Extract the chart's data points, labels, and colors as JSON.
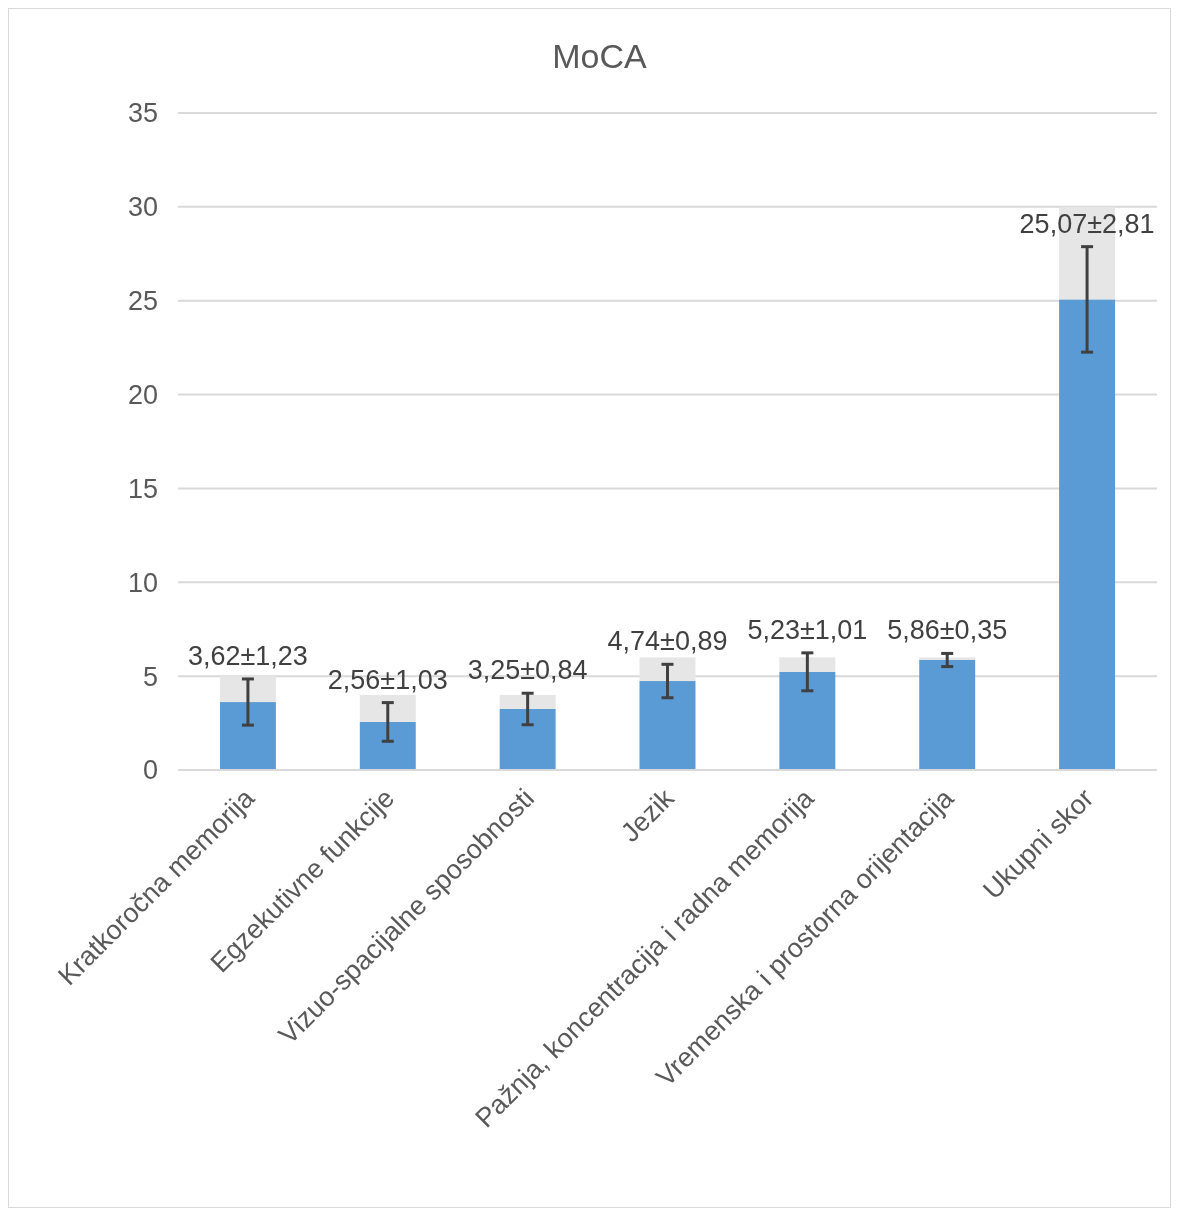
{
  "chart_data": {
    "type": "bar",
    "title": "MoCA",
    "categories": [
      "Kratkoročna memorija",
      "Egzekutivne funkcije",
      "Vizuo-spacijalne sposobnosti",
      "Jezik",
      "Pažnja, koncentracija i radna memorija",
      "Vremenska i prostorna orijentacija",
      "Ukupni skor"
    ],
    "series": [
      {
        "color": "#5b9bd5",
        "values": [
          3.62,
          2.56,
          3.25,
          4.74,
          5.23,
          5.86,
          25.07
        ],
        "errors": [
          1.23,
          1.03,
          0.84,
          0.89,
          1.01,
          0.35,
          2.81
        ],
        "value_labels": [
          "3,62±1,23",
          "2,56±1,03",
          "3,25±0,84",
          "4,74±0,89",
          "5,23±1,01",
          "5,86±0,35",
          "25,07±2,81"
        ]
      },
      {
        "color": "#e7e6e6",
        "values": [
          1.38,
          1.44,
          0.75,
          1.26,
          0.77,
          0.14,
          4.93
        ]
      }
    ],
    "stacked": true,
    "ylim": [
      0,
      35
    ],
    "yticks": [
      0,
      5,
      10,
      15,
      20,
      25,
      30,
      35
    ],
    "grid": "y"
  }
}
